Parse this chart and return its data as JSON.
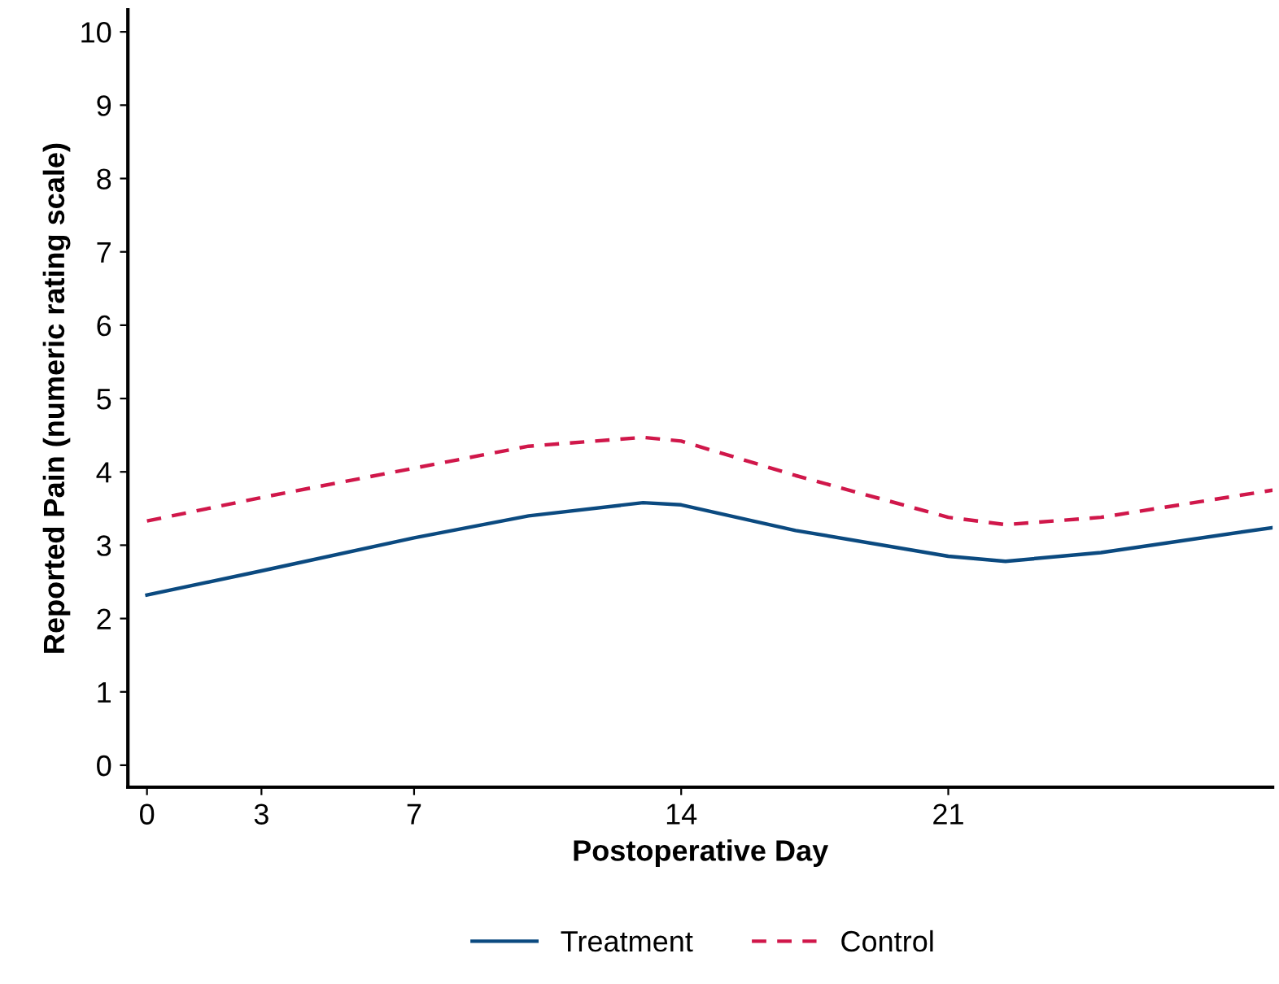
{
  "chart_data": {
    "type": "line",
    "xlabel": "Postoperative Day",
    "ylabel": "Reported Pain (numeric rating scale)",
    "xlim": [
      -0.5,
      29.5
    ],
    "xticks": [
      0,
      3,
      7,
      14,
      21
    ],
    "ylim": [
      -0.3,
      10.3
    ],
    "yticks": [
      0,
      1,
      2,
      3,
      4,
      5,
      6,
      7,
      8,
      9,
      10
    ],
    "x": [
      0,
      3,
      7,
      10,
      13,
      14,
      17,
      21,
      22.5,
      25,
      29.5
    ],
    "series": [
      {
        "name": "Treatment",
        "color": "#0b4a80",
        "line_style": "solid",
        "values": [
          2.32,
          2.65,
          3.1,
          3.4,
          3.58,
          3.55,
          3.2,
          2.85,
          2.78,
          2.9,
          3.24
        ]
      },
      {
        "name": "Control",
        "color": "#d0174a",
        "line_style": "dashed",
        "values": [
          3.33,
          3.65,
          4.05,
          4.35,
          4.47,
          4.42,
          3.95,
          3.38,
          3.28,
          3.38,
          3.75
        ]
      }
    ],
    "legend": "bottom",
    "grid": false,
    "marker": "none"
  }
}
